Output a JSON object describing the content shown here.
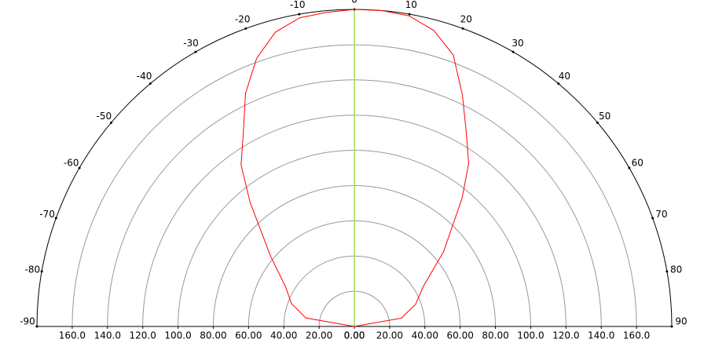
{
  "chart_data": {
    "type": "polar",
    "x": [
      -90,
      -80,
      -70,
      -60,
      -50,
      -40,
      -35,
      -30,
      -25,
      -20,
      -15,
      -10,
      -5,
      0,
      5,
      10,
      15,
      20,
      25,
      30,
      35,
      40,
      50,
      60,
      70,
      80,
      90
    ],
    "values": [
      0,
      28,
      38,
      45,
      62,
      92,
      112,
      126,
      146,
      162,
      173,
      178,
      179,
      180,
      180,
      179,
      174,
      164,
      145,
      127,
      113,
      95,
      66,
      45,
      37,
      27,
      0
    ],
    "color": "#ff0000",
    "thetalim": [
      -90,
      90
    ],
    "thetaticks": [
      -90,
      -80,
      -70,
      -60,
      -50,
      -40,
      -30,
      -20,
      -10,
      0,
      10,
      20,
      30,
      40,
      50,
      60,
      70,
      80,
      90
    ],
    "rlim": [
      0,
      180
    ],
    "rticks": [
      {
        "value": 0,
        "label": "0.00"
      },
      {
        "value": 20,
        "label": "20.00"
      },
      {
        "value": 40,
        "label": "40.00"
      },
      {
        "value": 60,
        "label": "60.00"
      },
      {
        "value": 80,
        "label": "80.00"
      },
      {
        "value": 100,
        "label": "100.0"
      },
      {
        "value": 120,
        "label": "120.0"
      },
      {
        "value": 140,
        "label": "140.0"
      },
      {
        "value": 160,
        "label": "160.0"
      }
    ],
    "grid": true,
    "zero_line_color": "#99e64d"
  }
}
